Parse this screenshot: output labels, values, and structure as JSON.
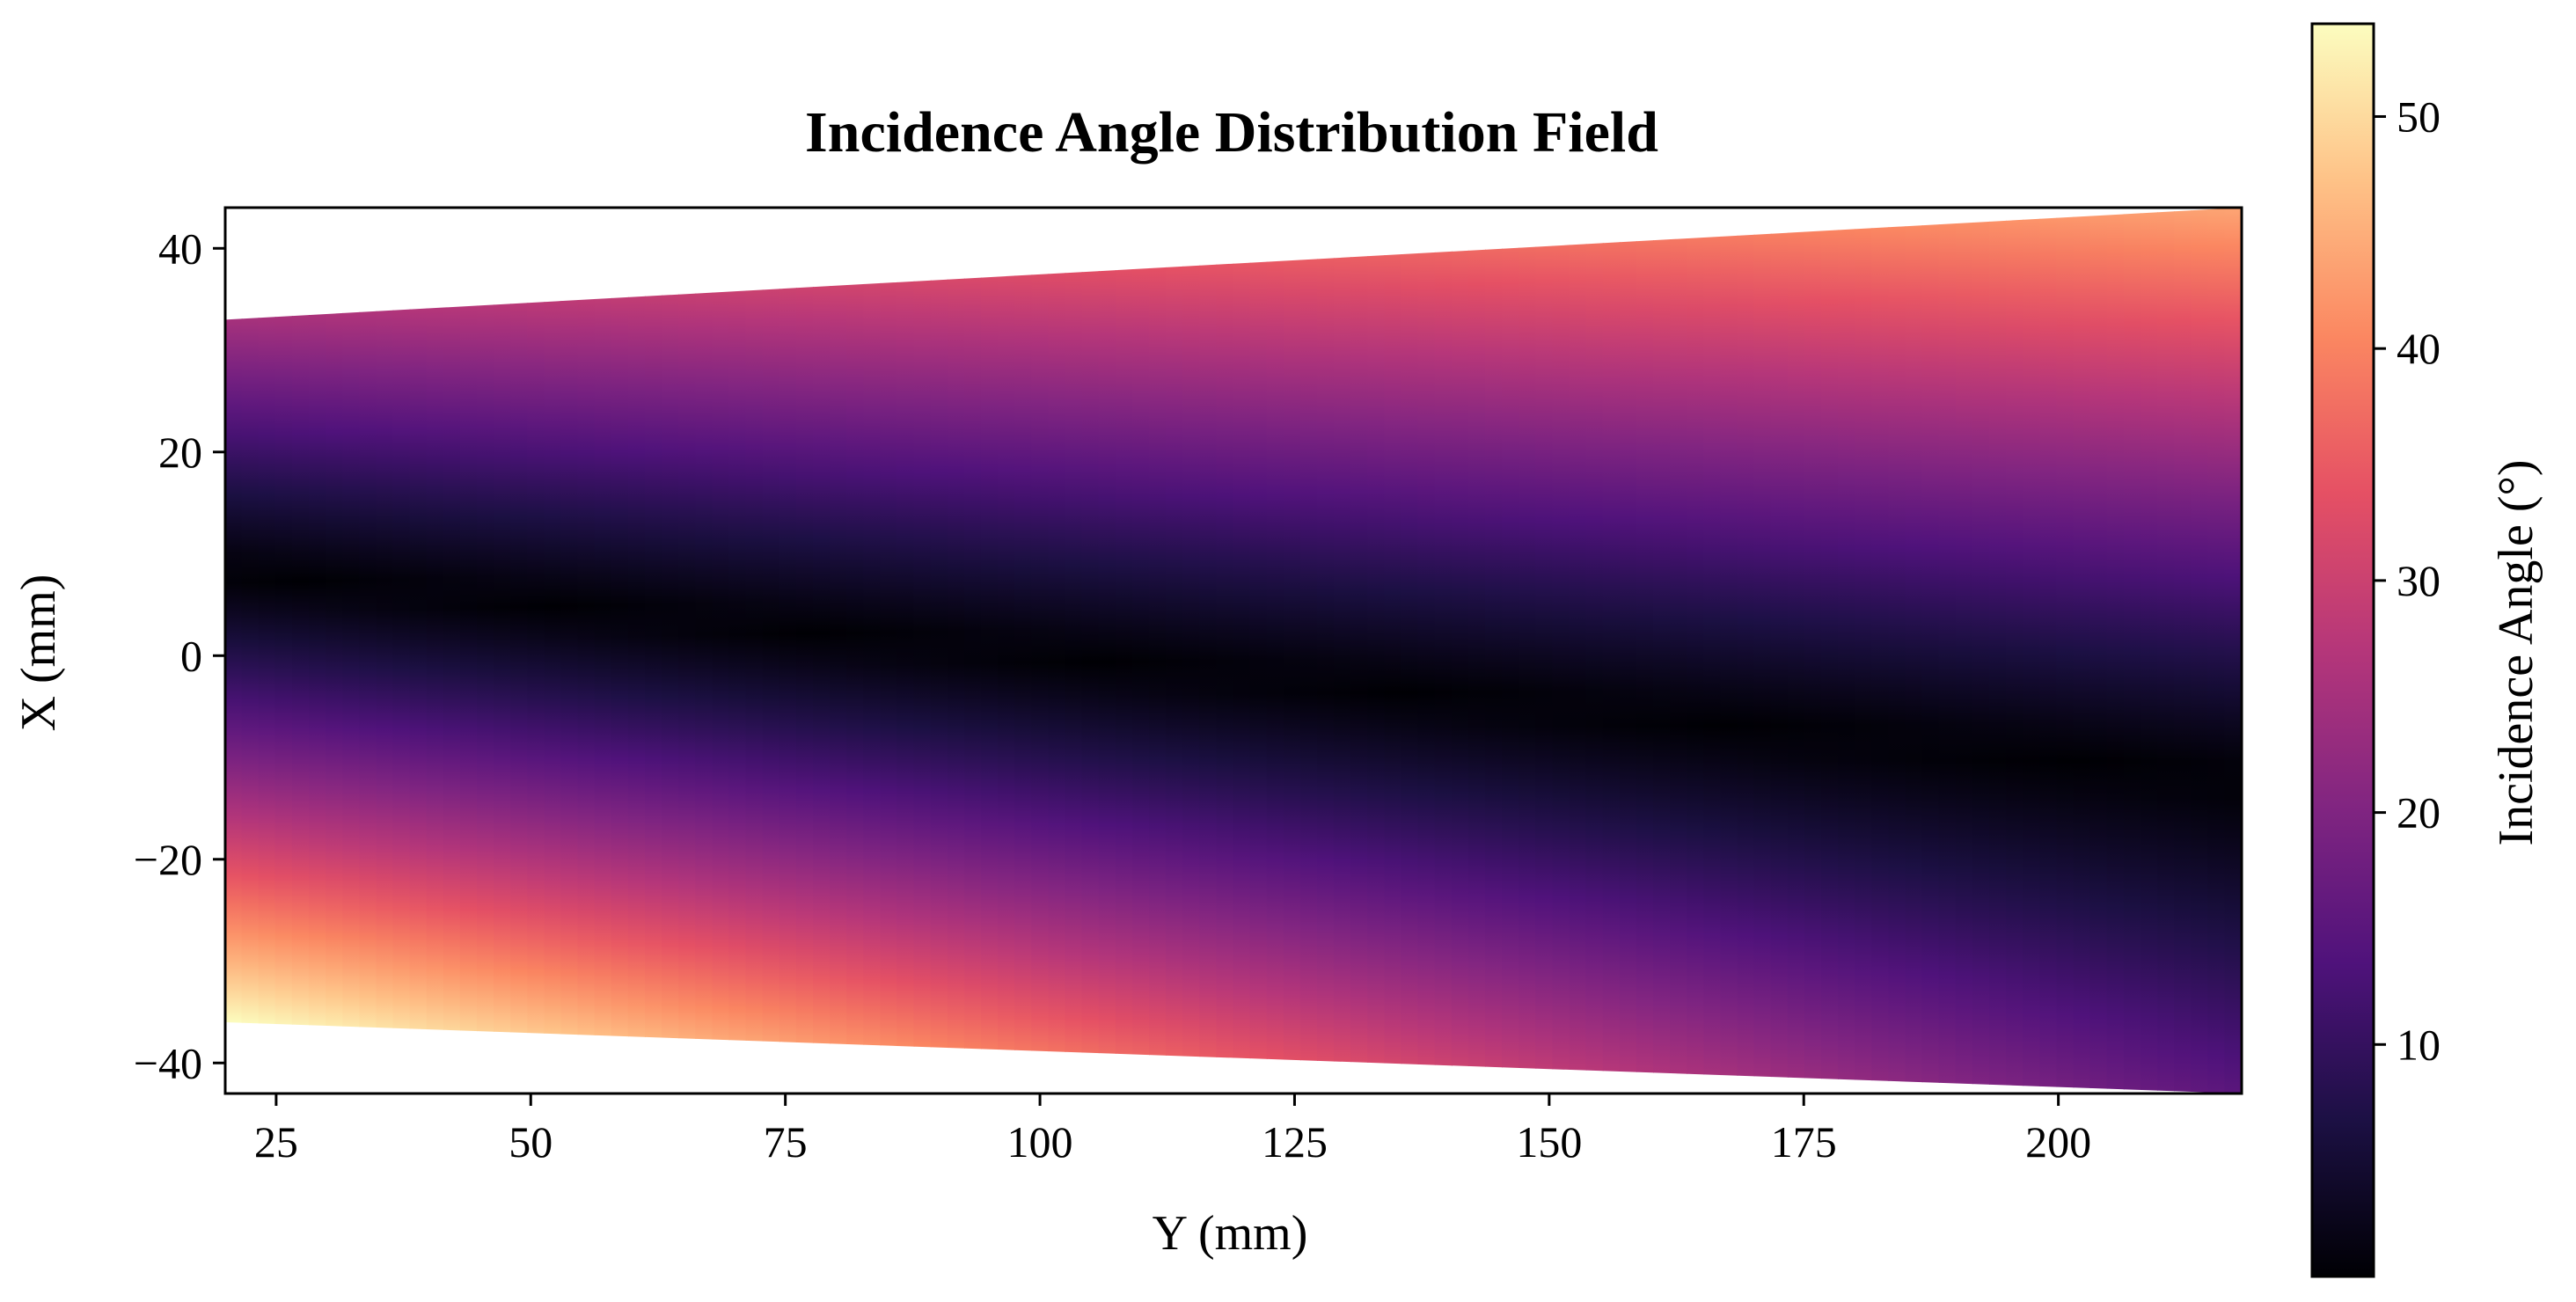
{
  "chart_data": {
    "type": "heatmap",
    "title": "Incidence Angle Distribution Field",
    "xlabel": "Y (mm)",
    "ylabel": "X (mm)",
    "colorbar_label": "Incidence Angle (°)",
    "colormap": "magma",
    "colormap_stops": [
      "#000004",
      "#1c1044",
      "#4f127b",
      "#812581",
      "#b5367a",
      "#e55064",
      "#fb8761",
      "#fec287",
      "#fcfdbf"
    ],
    "xlim": [
      20,
      218
    ],
    "ylim": [
      -43,
      44
    ],
    "x_ticks": [
      25,
      50,
      75,
      100,
      125,
      150,
      175,
      200
    ],
    "x_tick_labels": [
      "25",
      "50",
      "75",
      "100",
      "125",
      "150",
      "175",
      "200"
    ],
    "y_ticks": [
      40,
      20,
      0,
      -20,
      -40
    ],
    "y_tick_labels": [
      "40",
      "20",
      "0",
      "−20",
      "−40"
    ],
    "colorbar_range": [
      0,
      54
    ],
    "colorbar_ticks": [
      10,
      20,
      30,
      40,
      50
    ],
    "colorbar_tick_labels": [
      "10",
      "20",
      "30",
      "40",
      "50"
    ],
    "domain": {
      "y_start": 20,
      "y_end": 218,
      "upper_boundary_x": [
        33,
        44
      ],
      "lower_boundary_x": [
        -36,
        -43
      ]
    },
    "zero_angle_line_x": [
      8,
      -12
    ],
    "angle_extremes": {
      "max_angle_at_lower_left": 54,
      "upper_right_angle": 44,
      "upper_left_angle": 25,
      "lower_right_angle": 15
    },
    "grid": false
  }
}
